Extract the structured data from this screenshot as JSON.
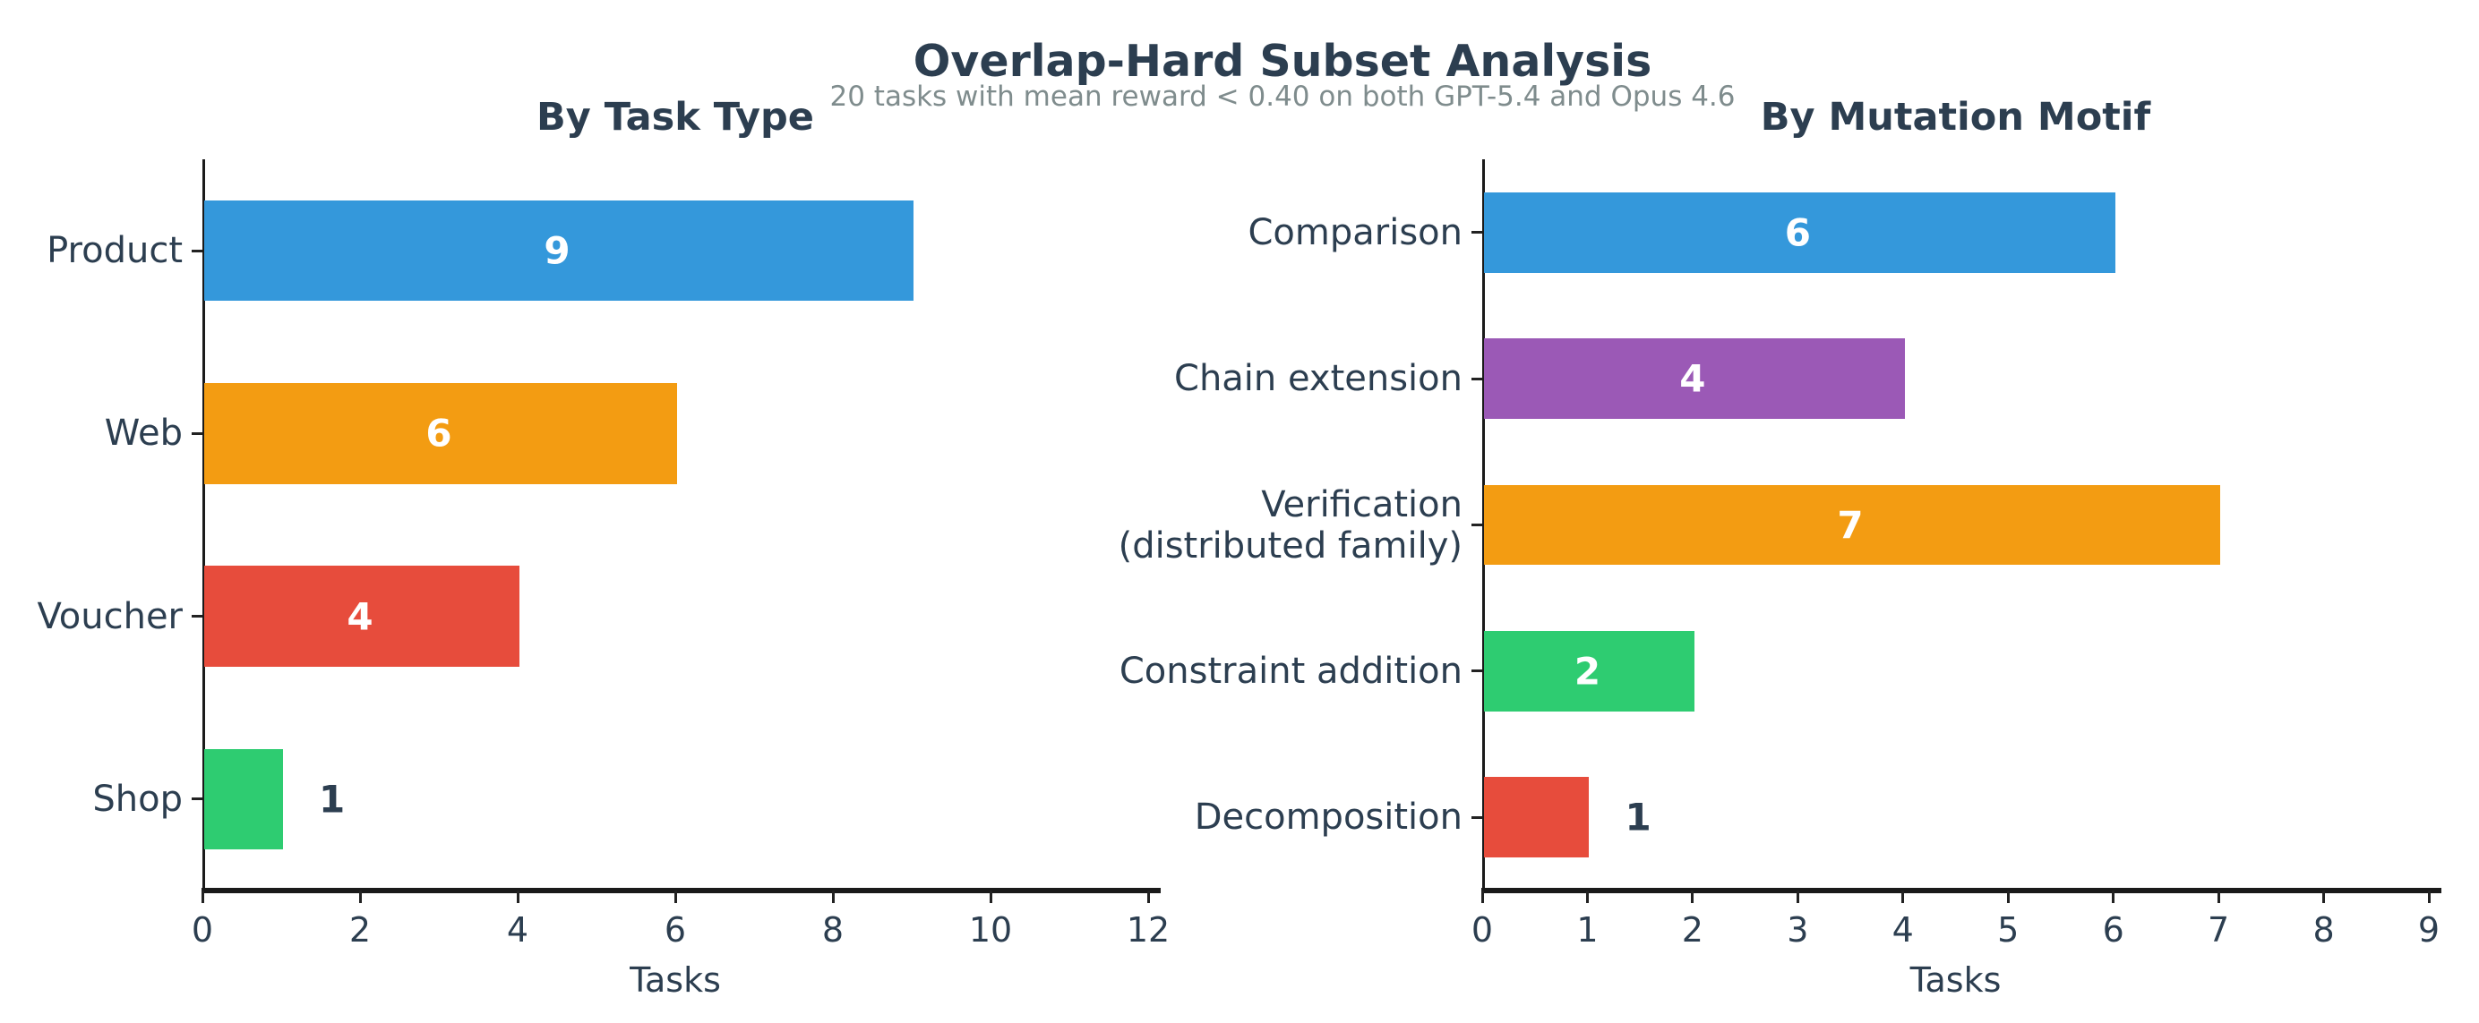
{
  "header": {
    "title": "Overlap-Hard Subset Analysis",
    "subtitle": "20 tasks with mean reward < 0.40 on both GPT-5.4 and Opus 4.6"
  },
  "style": {
    "text_color": "#2c3e50",
    "subtitle_color": "#7f8c8d",
    "spine_color": "#1a1a1a",
    "inside_label_color": "#ffffff"
  },
  "chart_data": [
    {
      "type": "bar",
      "orientation": "horizontal",
      "title": "By Task Type",
      "categories": [
        "Product",
        "Web",
        "Voucher",
        "Shop"
      ],
      "values": [
        9,
        6,
        4,
        1
      ],
      "bar_colors": [
        "#3498db",
        "#f39c12",
        "#e74c3c",
        "#2ecc71"
      ],
      "value_labels": [
        "9",
        "6",
        "4",
        "1"
      ],
      "xlabel": "Tasks",
      "xlim": [
        0,
        12
      ],
      "xticks": [
        0,
        2,
        4,
        6,
        8,
        10,
        12
      ],
      "grid": false,
      "legend": null
    },
    {
      "type": "bar",
      "orientation": "horizontal",
      "title": "By Mutation Motif",
      "categories": [
        "Comparison",
        "Chain extension",
        "Verification\n(distributed family)",
        "Constraint addition",
        "Decomposition"
      ],
      "values": [
        6,
        4,
        7,
        2,
        1
      ],
      "bar_colors": [
        "#3498db",
        "#9b59b6",
        "#f39c12",
        "#2ecc71",
        "#e74c3c"
      ],
      "value_labels": [
        "6",
        "4",
        "7",
        "2",
        "1"
      ],
      "xlabel": "Tasks",
      "xlim": [
        0,
        9
      ],
      "xticks": [
        0,
        1,
        2,
        3,
        4,
        5,
        6,
        7,
        8,
        9
      ],
      "grid": false,
      "legend": null
    }
  ]
}
